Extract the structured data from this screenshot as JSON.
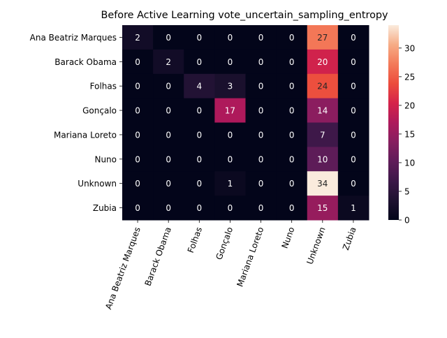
{
  "chart_data": {
    "type": "heatmap",
    "title": "Before Active Learning vote_uncertain_sampling_entropy",
    "xlabel": "",
    "ylabel": "",
    "rows": [
      "Ana Beatriz Marques",
      "Barack Obama",
      "Folhas",
      "Gonçalo",
      "Mariana Loreto",
      "Nuno",
      "Unknown",
      "Zubia"
    ],
    "columns": [
      "Ana Beatriz Marques",
      "Barack Obama",
      "Folhas",
      "Gonçalo",
      "Mariana Loreto",
      "Nuno",
      "Unknown",
      "Zubia"
    ],
    "values": [
      [
        2,
        0,
        0,
        0,
        0,
        0,
        27,
        0
      ],
      [
        0,
        2,
        0,
        0,
        0,
        0,
        20,
        0
      ],
      [
        0,
        0,
        4,
        3,
        0,
        0,
        24,
        0
      ],
      [
        0,
        0,
        0,
        17,
        0,
        0,
        14,
        0
      ],
      [
        0,
        0,
        0,
        0,
        0,
        0,
        7,
        0
      ],
      [
        0,
        0,
        0,
        0,
        0,
        0,
        10,
        0
      ],
      [
        0,
        0,
        0,
        1,
        0,
        0,
        34,
        0
      ],
      [
        0,
        0,
        0,
        0,
        0,
        0,
        15,
        1
      ]
    ],
    "colorbar": {
      "min": 0,
      "max": 34,
      "ticks": [
        "0",
        "5",
        "10",
        "15",
        "20",
        "25",
        "30"
      ],
      "colormap": "rocket"
    }
  }
}
